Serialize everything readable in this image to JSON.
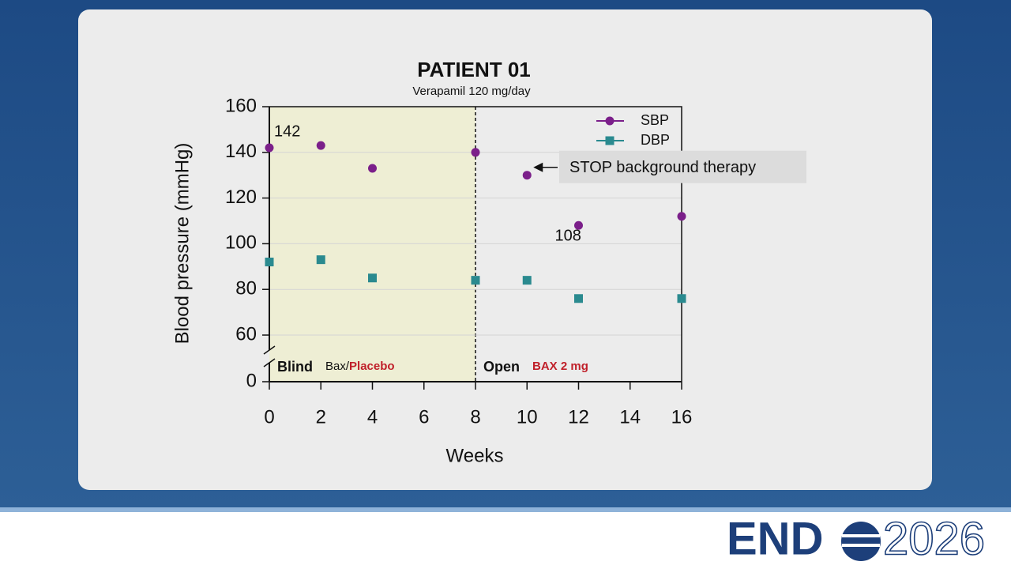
{
  "chart_data": {
    "type": "line",
    "title": "PATIENT 01",
    "subtitle": "Verapamil 120 mg/day",
    "x_label": "Weeks",
    "y_label": "Blood pressure (mmHg)",
    "x": [
      0,
      2,
      4,
      8,
      10,
      12,
      16
    ],
    "series": [
      {
        "name": "SBP",
        "color": "#7b1f8a",
        "marker": "circle",
        "values": [
          142,
          143,
          133,
          140,
          130,
          108,
          112
        ],
        "value_labels": [
          "142",
          null,
          null,
          null,
          null,
          "108",
          null
        ]
      },
      {
        "name": "DBP",
        "color": "#2a8a8f",
        "marker": "square",
        "values": [
          92,
          93,
          85,
          84,
          84,
          76,
          76
        ]
      }
    ],
    "xlim": [
      0,
      16
    ],
    "xticks": [
      0,
      2,
      4,
      6,
      8,
      10,
      12,
      14,
      16
    ],
    "ylim": [
      0,
      160
    ],
    "yticks": [
      0,
      60,
      80,
      100,
      120,
      140,
      160
    ],
    "axis_break": true,
    "grid": true,
    "legend": "top-right",
    "phases": [
      {
        "name": "Blind",
        "x": [
          0,
          8
        ],
        "shaded": true,
        "fill": "#eeeed4",
        "treatment": [
          {
            "text": "Bax/",
            "color": "#111111"
          },
          {
            "text": "Placebo",
            "color": "#c0202a"
          }
        ]
      },
      {
        "name": "Open",
        "x": [
          8,
          16
        ],
        "shaded": false,
        "treatment": [
          {
            "text": "BAX 2 mg",
            "color": "#c0202a"
          }
        ]
      }
    ],
    "callout": {
      "text": "STOP background therapy",
      "x": 10,
      "y": 130
    }
  },
  "footer": {
    "logo": "END",
    "year": "2026"
  }
}
